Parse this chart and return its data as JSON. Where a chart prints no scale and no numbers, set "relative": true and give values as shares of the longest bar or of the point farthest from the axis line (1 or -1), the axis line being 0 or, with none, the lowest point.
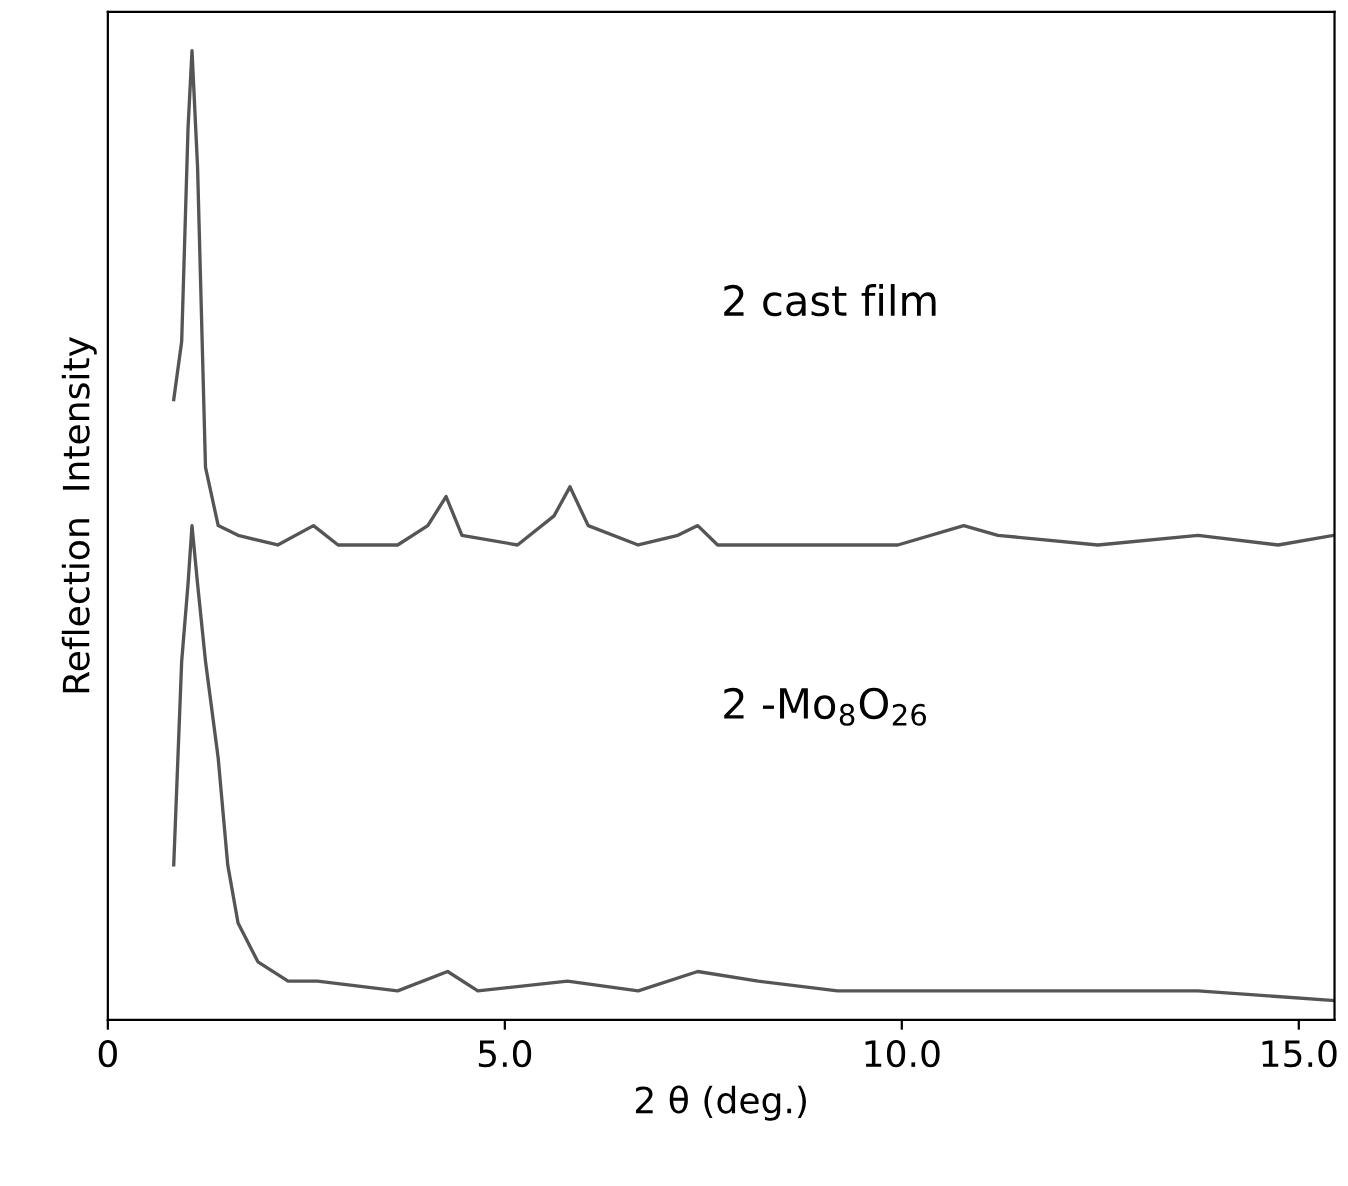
{
  "chart_data": {
    "type": "line",
    "relative": true,
    "xlabel": "2 θ (deg.)",
    "ylabel": "Reflection  Intensity",
    "xlim": [
      0,
      15.45
    ],
    "xticks": [
      0,
      {
        "value": 5,
        "label": "5.0"
      },
      {
        "value": 10,
        "label": "10.0"
      },
      {
        "value": 15,
        "label": "15.0"
      }
    ],
    "series": [
      {
        "color": "#555555",
        "x": [
          0.83,
          0.93,
          1.01,
          1.06,
          1.13,
          1.23,
          1.39,
          1.64,
          2.14,
          2.59,
          2.9,
          3.65,
          4.03,
          4.26,
          4.46,
          5.16,
          5.62,
          5.82,
          6.05,
          6.68,
          7.18,
          7.43,
          7.68,
          8.69,
          9.95,
          10.78,
          11.21,
          12.47,
          13.73,
          14.74,
          15.44
        ],
        "values": [
          0.64,
          0.7,
          0.92,
          1.0,
          0.88,
          0.57,
          0.51,
          0.5,
          0.49,
          0.51,
          0.49,
          0.49,
          0.51,
          0.54,
          0.5,
          0.49,
          0.52,
          0.55,
          0.51,
          0.49,
          0.5,
          0.51,
          0.49,
          0.49,
          0.49,
          0.51,
          0.5,
          0.49,
          0.5,
          0.49,
          0.5
        ]
      },
      {
        "color": "#555555",
        "x": [
          0.83,
          0.93,
          1.01,
          1.06,
          1.13,
          1.23,
          1.39,
          1.51,
          1.64,
          1.89,
          2.27,
          2.64,
          3.65,
          4.28,
          4.66,
          5.79,
          6.68,
          7.43,
          8.19,
          9.19,
          11.21,
          13.73,
          15.44
        ],
        "values": [
          0.16,
          0.37,
          0.45,
          0.51,
          0.45,
          0.37,
          0.27,
          0.16,
          0.1,
          0.06,
          0.04,
          0.04,
          0.03,
          0.05,
          0.03,
          0.04,
          0.03,
          0.05,
          0.04,
          0.03,
          0.03,
          0.03,
          0.02
        ]
      }
    ],
    "annotations": [
      "2 cast film",
      "2 -Mo$_{8}$O$_{26}$"
    ],
    "grid": false,
    "legend": false,
    "marker": "none",
    "line_style": "solid"
  }
}
